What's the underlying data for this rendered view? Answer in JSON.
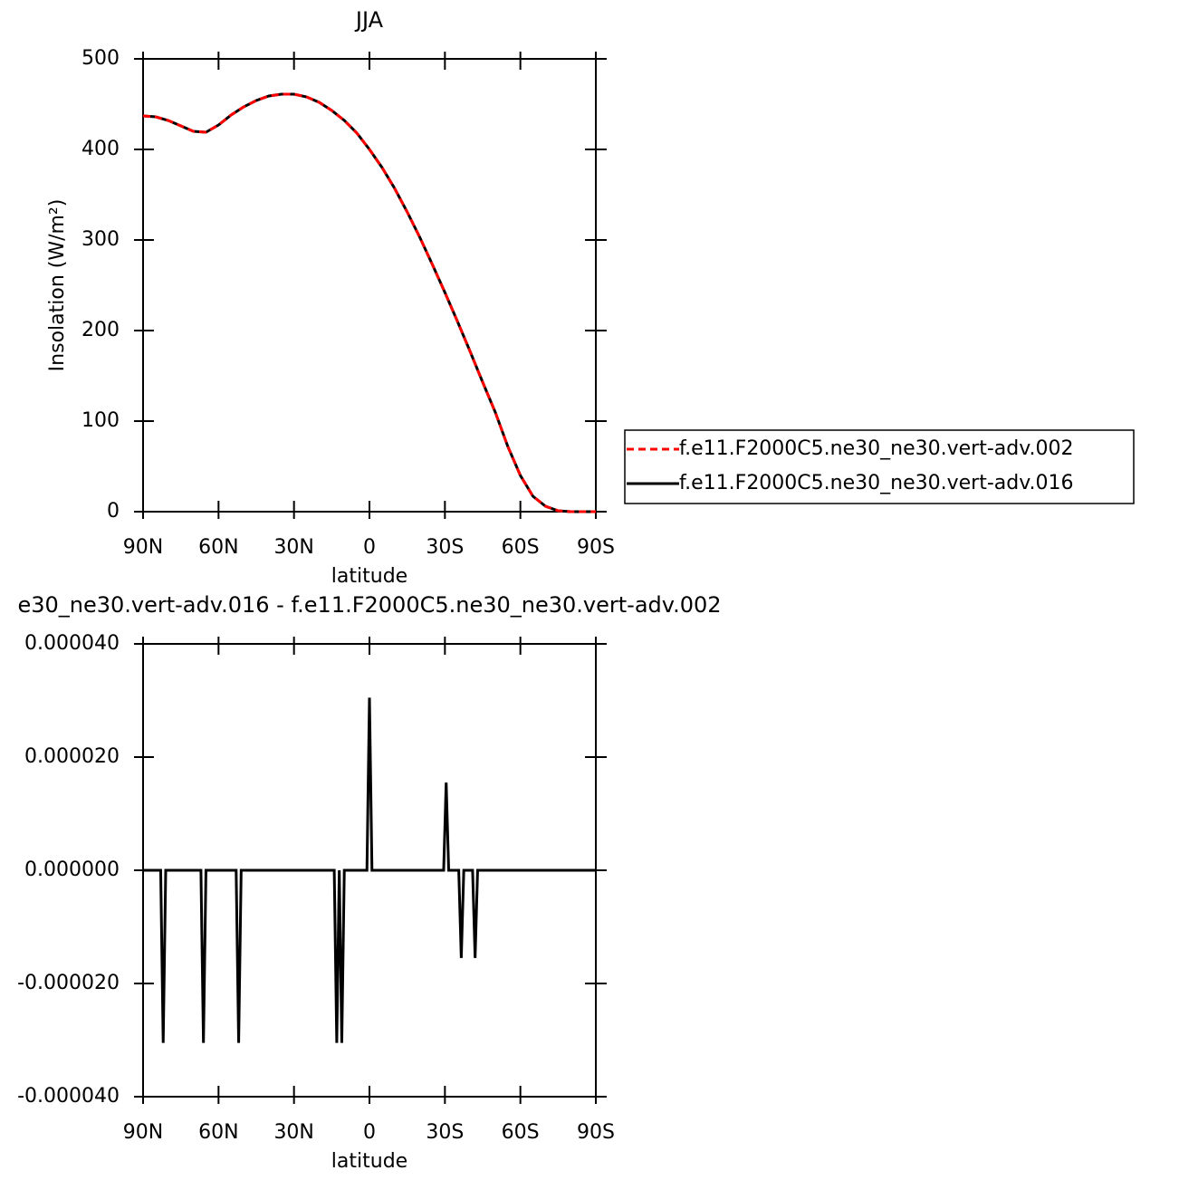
{
  "chart_data": [
    {
      "type": "line",
      "title": "JJA",
      "xlabel": "latitude",
      "ylabel": "Insolation (W/m²)",
      "x": [
        90,
        85,
        80,
        75,
        70,
        65,
        60,
        55,
        50,
        45,
        40,
        35,
        30,
        25,
        20,
        15,
        10,
        5,
        0,
        -5,
        -10,
        -15,
        -20,
        -25,
        -30,
        -35,
        -40,
        -45,
        -50,
        -55,
        -60,
        -65,
        -70,
        -75,
        -80,
        -85,
        -90
      ],
      "series": [
        {
          "name": "f.e11.F2000C5.ne30_ne30.vert-adv.002",
          "color": "#ff0000",
          "dash": true,
          "values": [
            437,
            436,
            432,
            426,
            420,
            419,
            427,
            438,
            447,
            454,
            459,
            461,
            461,
            458,
            452,
            443,
            432,
            418,
            400,
            380,
            357,
            331,
            303,
            273,
            242,
            210,
            177,
            143,
            110,
            72,
            40,
            17,
            6,
            1,
            0,
            0,
            0
          ]
        },
        {
          "name": "f.e11.F2000C5.ne30_ne30.vert-adv.016",
          "color": "#000000",
          "dash": false,
          "values": [
            437,
            436,
            432,
            426,
            420,
            419,
            427,
            438,
            447,
            454,
            459,
            461,
            461,
            458,
            452,
            443,
            432,
            418,
            400,
            380,
            357,
            331,
            303,
            273,
            242,
            210,
            177,
            143,
            110,
            72,
            40,
            17,
            6,
            1,
            0,
            0,
            0
          ]
        }
      ],
      "xlim": [
        90,
        -90
      ],
      "xticks": [
        {
          "value": 90,
          "label": "90N"
        },
        {
          "value": 60,
          "label": "60N"
        },
        {
          "value": 30,
          "label": "30N"
        },
        0,
        {
          "value": -30,
          "label": "30S"
        },
        {
          "value": -60,
          "label": "60S"
        },
        {
          "value": -90,
          "label": "90S"
        }
      ],
      "ylim": [
        0,
        500
      ],
      "yticks": [
        0,
        100,
        200,
        300,
        400,
        500
      ],
      "legend": "right"
    },
    {
      "type": "line",
      "title": "e30_ne30.vert-adv.016 - f.e11.F2000C5.ne30_ne30.vert-adv.002",
      "xlabel": "latitude",
      "x": [
        90,
        83,
        82,
        81,
        67,
        66,
        65,
        53,
        52,
        51,
        14,
        13,
        12,
        11,
        10,
        1,
        0,
        -1,
        -29.5,
        -30.5,
        -31.5,
        -35.5,
        -36.5,
        -37.5,
        -41,
        -42,
        -43,
        -90
      ],
      "values": [
        0,
        0,
        -3.05e-05,
        0,
        0,
        -3.05e-05,
        0,
        0,
        -3.05e-05,
        0,
        0,
        -3.05e-05,
        0,
        -3.05e-05,
        0,
        0,
        3.05e-05,
        0,
        0,
        1.55e-05,
        0,
        0,
        -1.55e-05,
        0,
        0,
        -1.55e-05,
        0,
        0
      ],
      "color": "#000000",
      "xlim": [
        90,
        -90
      ],
      "xticks": [
        {
          "value": 90,
          "label": "90N"
        },
        {
          "value": 60,
          "label": "60N"
        },
        {
          "value": 30,
          "label": "30N"
        },
        0,
        {
          "value": -30,
          "label": "30S"
        },
        {
          "value": -60,
          "label": "60S"
        },
        {
          "value": -90,
          "label": "90S"
        }
      ],
      "ylim": [
        -4e-05,
        4e-05
      ],
      "yticks": [
        {
          "value": -4e-05,
          "label": "-0.000040"
        },
        {
          "value": -2e-05,
          "label": "-0.000020"
        },
        {
          "value": 0,
          "label": "0.000000"
        },
        {
          "value": 2e-05,
          "label": "0.000020"
        },
        {
          "value": 4e-05,
          "label": "0.000040"
        }
      ]
    }
  ]
}
